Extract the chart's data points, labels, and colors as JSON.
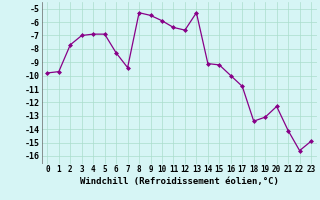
{
  "x": [
    0,
    1,
    2,
    3,
    4,
    5,
    6,
    7,
    8,
    9,
    10,
    11,
    12,
    13,
    14,
    15,
    16,
    17,
    18,
    19,
    20,
    21,
    22,
    23
  ],
  "y": [
    -9.8,
    -9.7,
    -7.7,
    -7.0,
    -6.9,
    -6.9,
    -8.3,
    -9.4,
    -5.3,
    -5.5,
    -5.9,
    -6.4,
    -6.6,
    -5.3,
    -9.1,
    -9.2,
    -10.0,
    -10.8,
    -13.4,
    -13.1,
    -12.3,
    -14.1,
    -15.6,
    -14.9
  ],
  "line_color": "#880088",
  "marker": "D",
  "marker_size": 2.0,
  "bg_color": "#d6f5f5",
  "grid_color": "#aaddcc",
  "xlabel": "Windchill (Refroidissement éolien,°C)",
  "xlabel_fontsize": 6.5,
  "ylabel_ticks": [
    -5,
    -6,
    -7,
    -8,
    -9,
    -10,
    -11,
    -12,
    -13,
    -14,
    -15,
    -16
  ],
  "ylim": [
    -16.6,
    -4.5
  ],
  "xlim": [
    -0.5,
    23.5
  ],
  "xtick_labels": [
    "0",
    "1",
    "2",
    "3",
    "4",
    "5",
    "6",
    "7",
    "8",
    "9",
    "10",
    "11",
    "12",
    "13",
    "14",
    "15",
    "16",
    "17",
    "18",
    "19",
    "20",
    "21",
    "22",
    "23"
  ],
  "tick_fontsize": 5.5,
  "ytick_fontsize": 6.0,
  "linewidth": 0.9
}
